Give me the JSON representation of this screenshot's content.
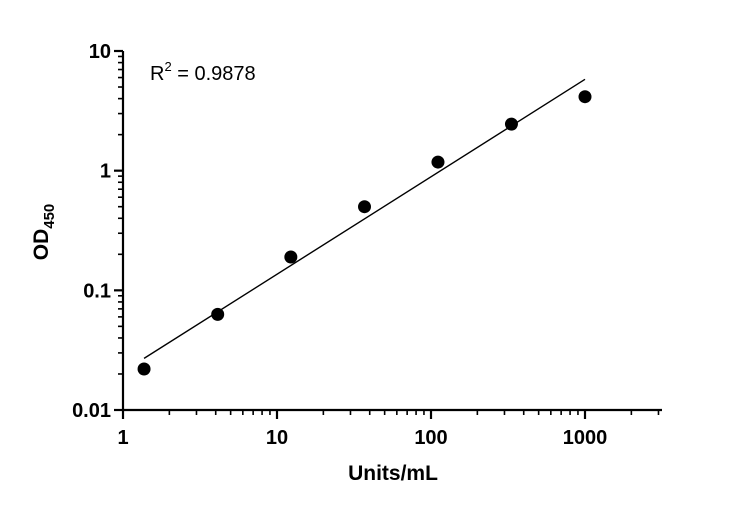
{
  "chart_data": {
    "type": "scatter",
    "x_scale": "log",
    "y_scale": "log",
    "xlim": [
      1,
      3000
    ],
    "ylim": [
      0.01,
      10
    ],
    "x_ticks": [
      1,
      10,
      100,
      1000
    ],
    "x_tick_labels": [
      "1",
      "10",
      "100",
      "1000"
    ],
    "y_ticks": [
      0.01,
      0.1,
      1,
      10
    ],
    "y_tick_labels": [
      "0.01",
      "0.1",
      "1",
      "10"
    ],
    "xlabel": "Units/mL",
    "ylabel": {
      "main": "OD",
      "subscript": "450"
    },
    "grid": false,
    "legend": "none",
    "annotation": {
      "r": "R",
      "sup": "2",
      "eq": " =  0.9878"
    },
    "points": {
      "x": [
        1.37,
        4.12,
        12.3,
        37.0,
        111,
        333,
        1000
      ],
      "y": [
        0.022,
        0.063,
        0.19,
        0.5,
        1.18,
        2.45,
        4.15
      ]
    },
    "fit_line": {
      "x": [
        1.37,
        1000
      ],
      "y": [
        0.027,
        5.8
      ]
    },
    "colors": {
      "points": "#000000",
      "line": "#000000",
      "axes": "#000000"
    }
  }
}
